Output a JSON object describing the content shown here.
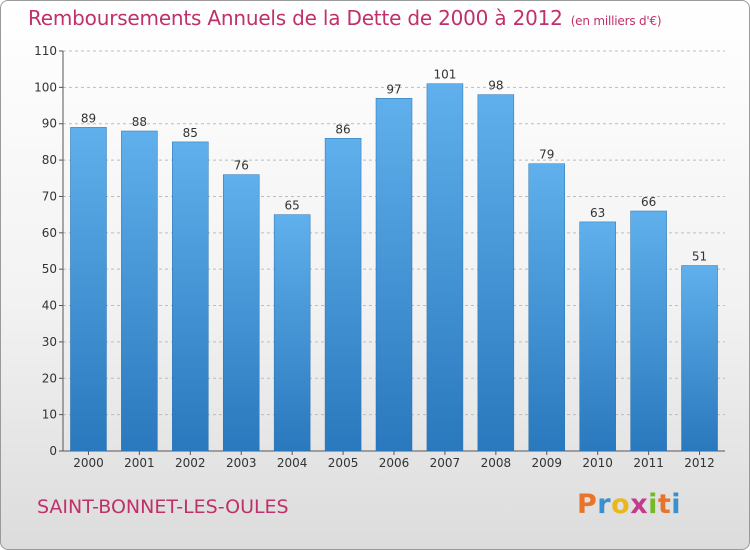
{
  "chart_data": {
    "type": "bar",
    "title": "Remboursements Annuels de la Dette de 2000 à 2012",
    "subtitle": "(en milliers d'€)",
    "categories": [
      "2000",
      "2001",
      "2002",
      "2003",
      "2004",
      "2005",
      "2006",
      "2007",
      "2008",
      "2009",
      "2010",
      "2011",
      "2012"
    ],
    "values": [
      89,
      88,
      85,
      76,
      65,
      86,
      97,
      101,
      98,
      79,
      63,
      66,
      51
    ],
    "ylim": [
      0,
      110
    ],
    "yticks": [
      0,
      10,
      20,
      30,
      40,
      50,
      60,
      70,
      80,
      90,
      100,
      110
    ],
    "grid": true,
    "bar_color": "#4a9ee0",
    "xlabel": "",
    "ylabel": ""
  },
  "commune": "SAINT-BONNET-LES-OULES",
  "logo": {
    "letters": [
      "P",
      "r",
      "o",
      "x",
      "i",
      "t",
      "i"
    ],
    "colors": [
      "#e8742a",
      "#3a8fd0",
      "#e8b81e",
      "#c33b8c",
      "#76b82a",
      "#e8742a",
      "#3a8fd0"
    ]
  }
}
